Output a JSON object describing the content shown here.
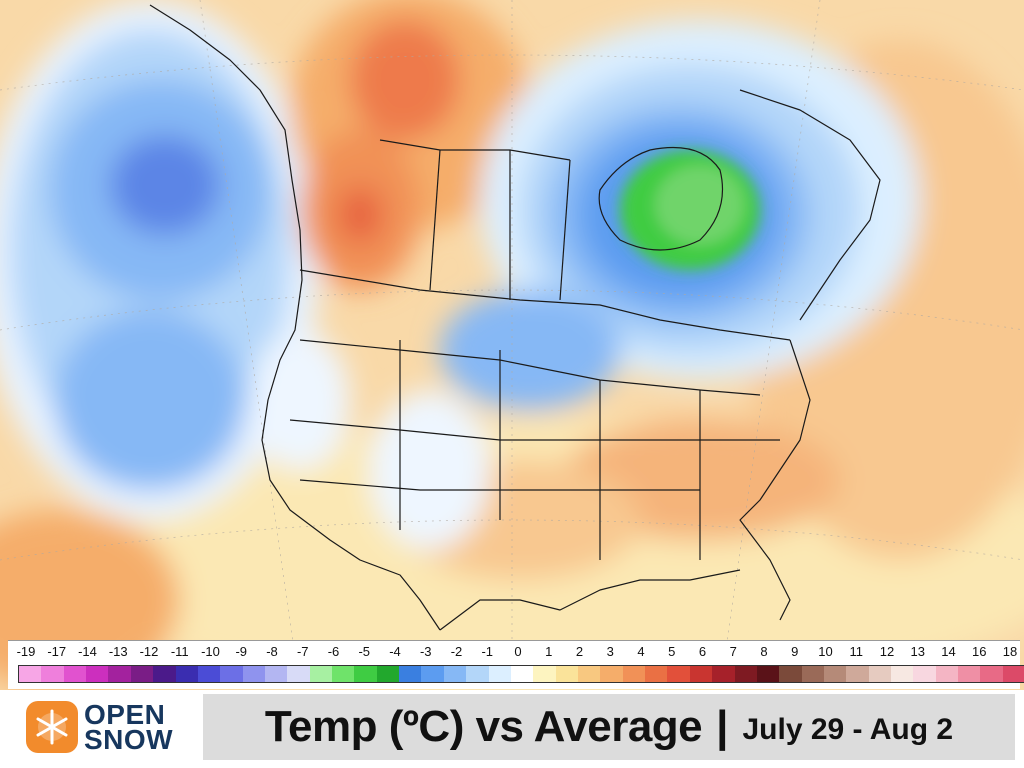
{
  "title": {
    "main": "Temp (ºC) vs Average",
    "separator": "|",
    "dates": "July 29 - Aug 2"
  },
  "brand": {
    "name_line1": "OPEN",
    "name_line2": "SNOW",
    "color": "#17375e",
    "icon_color": "#f28b2c"
  },
  "legend": {
    "ticks": [
      "-19",
      "-17",
      "-14",
      "-13",
      "-12",
      "-11",
      "-10",
      "-9",
      "-8",
      "-7",
      "-6",
      "-5",
      "-4",
      "-3",
      "-2",
      "-1",
      "0",
      "1",
      "2",
      "3",
      "4",
      "5",
      "6",
      "7",
      "8",
      "9",
      "10",
      "11",
      "12",
      "13",
      "14",
      "16",
      "18"
    ],
    "colors": [
      "#f7a6e6",
      "#ef7fdc",
      "#e152cf",
      "#cc2fbe",
      "#a3229e",
      "#7a1d86",
      "#4b1a8a",
      "#3a2db0",
      "#4b4cd6",
      "#6c6fe6",
      "#8f93ee",
      "#b3b6f2",
      "#d8dbf7",
      "#a7f0a2",
      "#6fe36a",
      "#3fcc43",
      "#22a82d",
      "#3a7fe0",
      "#5c9cf0",
      "#86b8f5",
      "#b3d6f9",
      "#dcefff",
      "#ffffff",
      "#fdf4c0",
      "#fae39a",
      "#f8c880",
      "#f5ad6a",
      "#f19157",
      "#ea7044",
      "#e2503a",
      "#c93530",
      "#a6212a",
      "#7e1a22",
      "#5a1218",
      "#7b4a3a",
      "#9a6a58",
      "#b58a78",
      "#cfa99a",
      "#e6cbc0",
      "#f7e8e2",
      "#f8d7e0",
      "#f4b5c4",
      "#ef8fa5",
      "#e86a86",
      "#dc4a68"
    ]
  },
  "map": {
    "description_colors": {
      "warm": "#f5ad6a",
      "cool": "#86b8f5",
      "cold_center": "#6fd46a"
    }
  }
}
